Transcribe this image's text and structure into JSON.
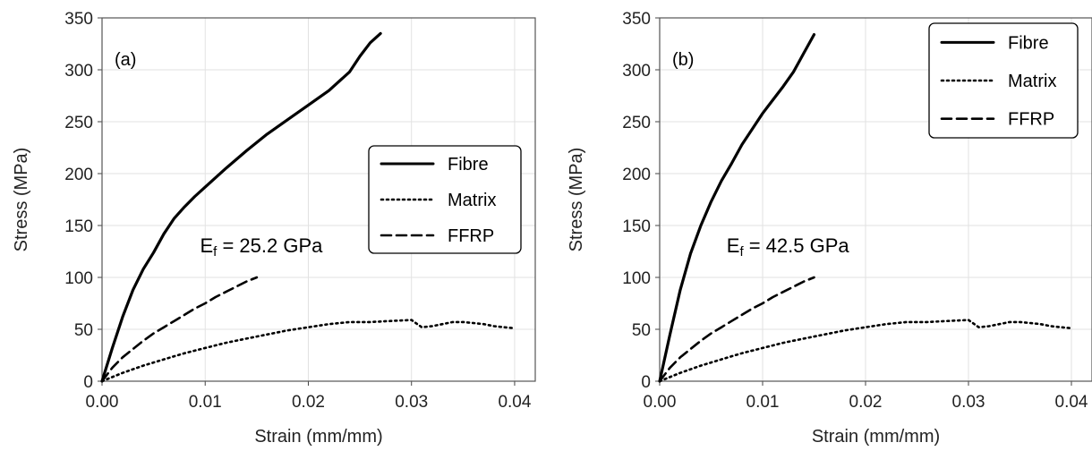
{
  "chart_data": [
    {
      "type": "line",
      "panel_label": "(a)",
      "xlabel": "Strain (mm/mm)",
      "ylabel": "Stress (MPa)",
      "xlim": [
        0,
        0.042
      ],
      "ylim": [
        0,
        350
      ],
      "xticks": [
        "0.00",
        "0.01",
        "0.02",
        "0.03",
        "0.04"
      ],
      "yticks": [
        "0",
        "50",
        "100",
        "150",
        "200",
        "250",
        "300",
        "350"
      ],
      "grid": true,
      "legend_position": "center-right",
      "annotation": {
        "main": "E",
        "sub": "f",
        "rest": " = 25.2 GPa",
        "at": [
          0.0095,
          124
        ]
      },
      "series": [
        {
          "name": "Fibre",
          "style": "solid",
          "x": [
            0,
            0.001,
            0.002,
            0.003,
            0.004,
            0.005,
            0.006,
            0.007,
            0.008,
            0.009,
            0.01,
            0.012,
            0.014,
            0.016,
            0.018,
            0.02,
            0.022,
            0.024,
            0.025,
            0.026,
            0.027
          ],
          "y": [
            0,
            32,
            62,
            88,
            108,
            124,
            142,
            157,
            168,
            178,
            187,
            205,
            222,
            238,
            252,
            266,
            280,
            298,
            313,
            326,
            335
          ]
        },
        {
          "name": "Matrix",
          "style": "dotted",
          "x": [
            0,
            0.002,
            0.004,
            0.006,
            0.008,
            0.01,
            0.012,
            0.014,
            0.016,
            0.018,
            0.02,
            0.022,
            0.024,
            0.026,
            0.028,
            0.03,
            0.031,
            0.032,
            0.033,
            0.034,
            0.035,
            0.036,
            0.037,
            0.038,
            0.039,
            0.04
          ],
          "y": [
            0,
            8,
            15,
            21,
            27,
            32,
            37,
            41,
            45,
            49,
            52,
            55,
            57,
            57,
            58,
            59,
            52,
            53,
            55,
            57,
            57,
            56,
            55,
            53,
            52,
            51
          ]
        },
        {
          "name": "FFRP",
          "style": "dashed",
          "x": [
            0,
            0.001,
            0.002,
            0.003,
            0.004,
            0.005,
            0.006,
            0.007,
            0.008,
            0.009,
            0.01,
            0.011,
            0.012,
            0.013,
            0.014,
            0.015
          ],
          "y": [
            0,
            13,
            23,
            31,
            39,
            46,
            52,
            58,
            64,
            70,
            75,
            81,
            86,
            91,
            96,
            100
          ]
        }
      ]
    },
    {
      "type": "line",
      "panel_label": "(b)",
      "xlabel": "Strain (mm/mm)",
      "ylabel": "Stress (MPa)",
      "xlim": [
        0,
        0.042
      ],
      "ylim": [
        0,
        350
      ],
      "xticks": [
        "0.00",
        "0.01",
        "0.02",
        "0.03",
        "0.04"
      ],
      "yticks": [
        "0",
        "50",
        "100",
        "150",
        "200",
        "250",
        "300",
        "350"
      ],
      "grid": true,
      "legend_position": "top-right",
      "annotation": {
        "main": "E",
        "sub": "f",
        "rest": " = 42.5 GPa",
        "at": [
          0.0065,
          124
        ]
      },
      "series": [
        {
          "name": "Fibre",
          "style": "solid",
          "x": [
            0,
            0.001,
            0.002,
            0.003,
            0.004,
            0.005,
            0.006,
            0.007,
            0.008,
            0.009,
            0.01,
            0.011,
            0.012,
            0.013,
            0.014,
            0.015
          ],
          "y": [
            0,
            45,
            88,
            123,
            150,
            173,
            193,
            210,
            228,
            243,
            258,
            271,
            284,
            298,
            316,
            334
          ]
        },
        {
          "name": "Matrix",
          "style": "dotted",
          "x": [
            0,
            0.002,
            0.004,
            0.006,
            0.008,
            0.01,
            0.012,
            0.014,
            0.016,
            0.018,
            0.02,
            0.022,
            0.024,
            0.026,
            0.028,
            0.03,
            0.031,
            0.032,
            0.033,
            0.034,
            0.035,
            0.036,
            0.037,
            0.038,
            0.039,
            0.04
          ],
          "y": [
            0,
            8,
            15,
            21,
            27,
            32,
            37,
            41,
            45,
            49,
            52,
            55,
            57,
            57,
            58,
            59,
            52,
            53,
            55,
            57,
            57,
            56,
            55,
            53,
            52,
            51
          ]
        },
        {
          "name": "FFRP",
          "style": "dashed",
          "x": [
            0,
            0.001,
            0.002,
            0.003,
            0.004,
            0.005,
            0.006,
            0.007,
            0.008,
            0.009,
            0.01,
            0.011,
            0.012,
            0.013,
            0.014,
            0.015
          ],
          "y": [
            0,
            13,
            23,
            31,
            39,
            46,
            52,
            58,
            64,
            70,
            75,
            81,
            86,
            91,
            96,
            100
          ]
        }
      ]
    }
  ]
}
